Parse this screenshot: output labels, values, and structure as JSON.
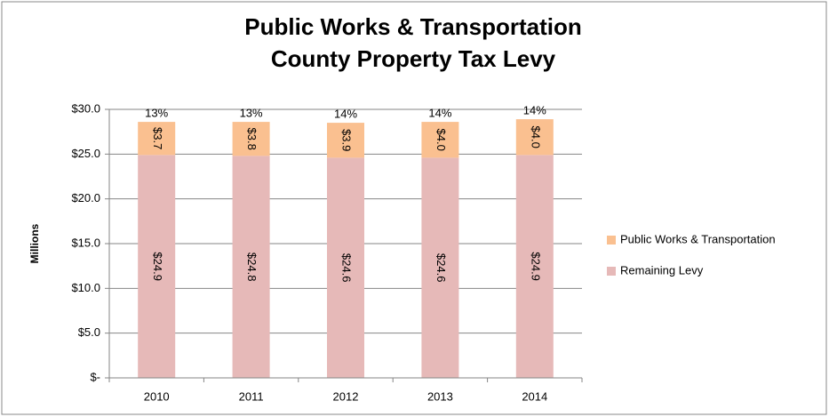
{
  "chart_data": {
    "type": "stacked_bar",
    "title": "Public Works & Transportation County Property Tax Levy",
    "y_label": "Millions",
    "categories": [
      "2010",
      "2011",
      "2012",
      "2013",
      "2014"
    ],
    "series": [
      {
        "name": "Remaining Levy",
        "color": "#e6b9b8",
        "values": [
          24.9,
          24.8,
          24.6,
          24.6,
          24.9
        ],
        "value_labels": [
          "$24.9",
          "$24.8",
          "$24.6",
          "$24.6",
          "$24.9"
        ]
      },
      {
        "name": "Public Works & Transportation",
        "color": "#fac090",
        "values": [
          3.7,
          3.8,
          3.9,
          4.0,
          4.0
        ],
        "value_labels": [
          "$3.7",
          "$3.8",
          "$3.9",
          "$4.0",
          "$4.0"
        ]
      }
    ],
    "top_labels": [
      "13%",
      "13%",
      "14%",
      "14%",
      "14%"
    ],
    "ylim": [
      0,
      30
    ],
    "yticks": [
      {
        "value": 0,
        "label": "$-"
      },
      {
        "value": 5,
        "label": "$5.0"
      },
      {
        "value": 10,
        "label": "$10.0"
      },
      {
        "value": 15,
        "label": "$15.0"
      },
      {
        "value": 20,
        "label": "$20.0"
      },
      {
        "value": 25,
        "label": "$25.0"
      },
      {
        "value": 30,
        "label": "$30.0"
      }
    ],
    "grid": true,
    "legend": "right"
  }
}
